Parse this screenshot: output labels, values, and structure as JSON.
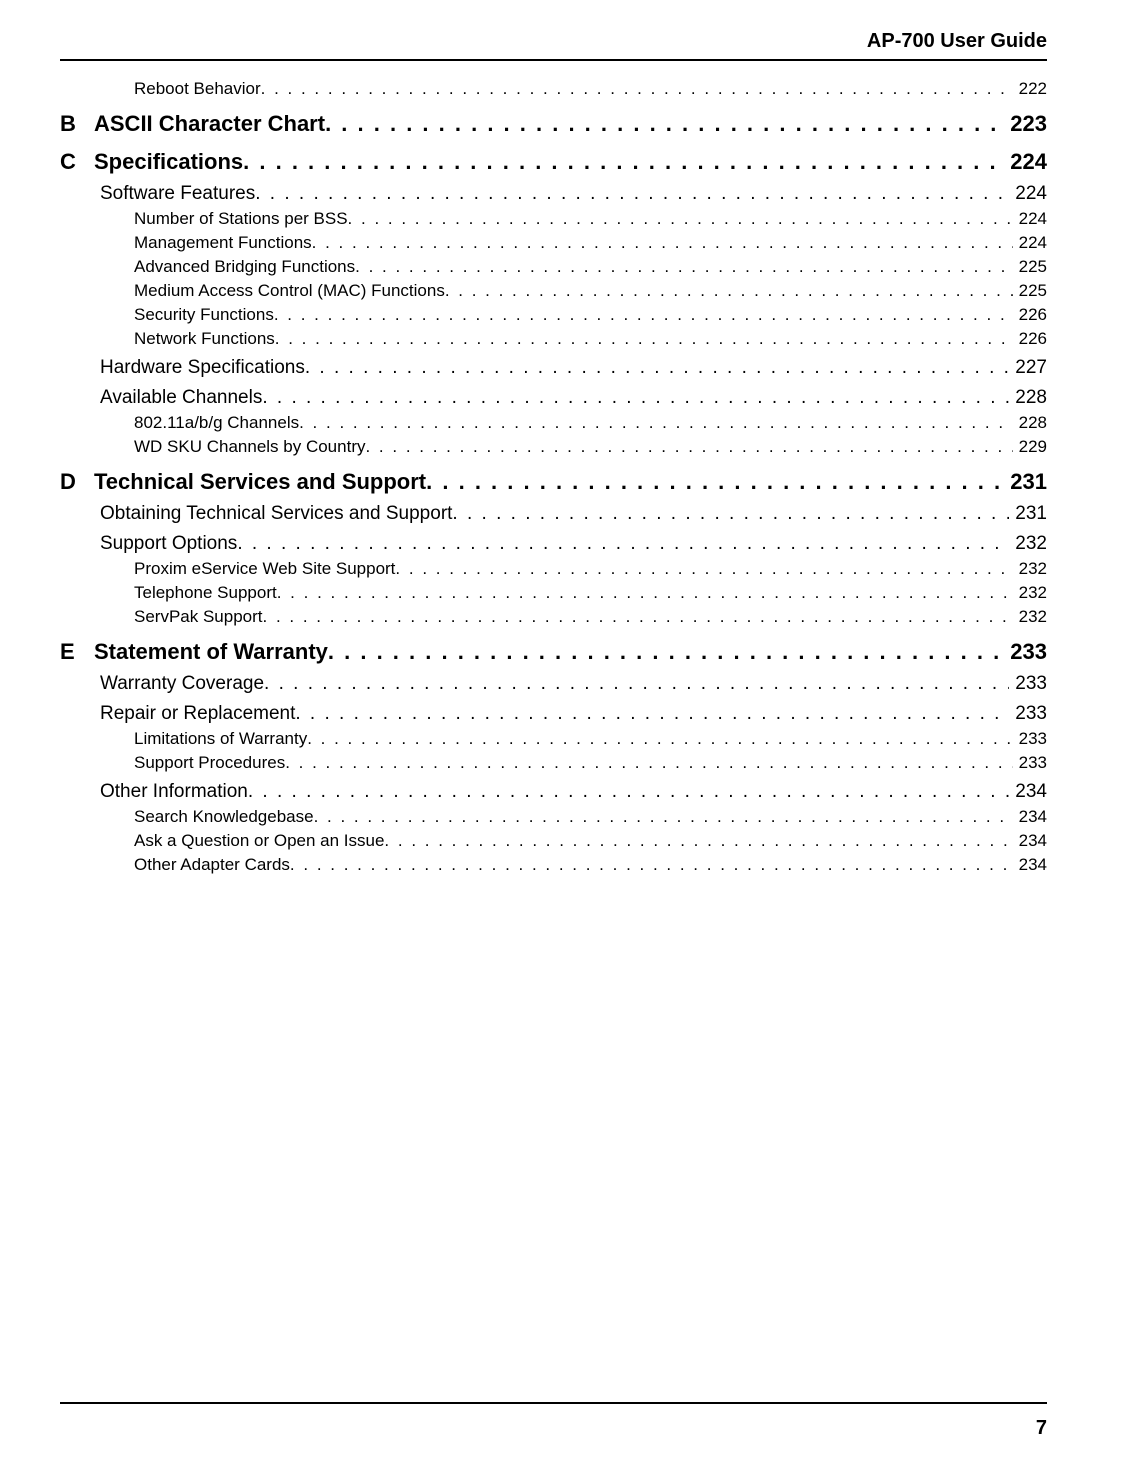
{
  "header": {
    "title": "AP-700 User Guide"
  },
  "footer": {
    "page_number": "7"
  },
  "toc": [
    {
      "level": 2,
      "label": "Reboot Behavior",
      "page": "222"
    },
    {
      "level": 0,
      "letter": "B",
      "label": "ASCII Character Chart",
      "page": "223"
    },
    {
      "level": 0,
      "letter": "C",
      "label": "Specifications",
      "page": "224"
    },
    {
      "level": 1,
      "label": "Software Features",
      "page": "224"
    },
    {
      "level": 2,
      "label": "Number of Stations per BSS",
      "page": "224"
    },
    {
      "level": 2,
      "label": "Management Functions",
      "page": "224"
    },
    {
      "level": 2,
      "label": "Advanced Bridging Functions",
      "page": "225"
    },
    {
      "level": 2,
      "label": "Medium Access Control (MAC) Functions",
      "page": "225"
    },
    {
      "level": 2,
      "label": "Security Functions",
      "page": "226"
    },
    {
      "level": 2,
      "label": "Network Functions",
      "page": "226"
    },
    {
      "level": 1,
      "label": "Hardware Specifications",
      "page": "227"
    },
    {
      "level": 1,
      "label": "Available Channels",
      "page": "228"
    },
    {
      "level": 2,
      "label": "802.11a/b/g Channels",
      "page": "228"
    },
    {
      "level": 2,
      "label": "WD SKU Channels by Country",
      "page": "229"
    },
    {
      "level": 0,
      "letter": "D",
      "label": "Technical Services and Support",
      "page": "231"
    },
    {
      "level": 1,
      "label": "Obtaining Technical Services and Support",
      "page": "231"
    },
    {
      "level": 1,
      "label": "Support Options",
      "page": "232"
    },
    {
      "level": 2,
      "label": "Proxim eService Web Site Support",
      "page": "232"
    },
    {
      "level": 2,
      "label": "Telephone Support",
      "page": "232"
    },
    {
      "level": 2,
      "label": "ServPak Support",
      "page": "232"
    },
    {
      "level": 0,
      "letter": "E",
      "label": "Statement of Warranty",
      "page": "233"
    },
    {
      "level": 1,
      "label": "Warranty Coverage",
      "page": "233"
    },
    {
      "level": 1,
      "label": "Repair or Replacement",
      "page": "233"
    },
    {
      "level": 2,
      "label": "Limitations of Warranty",
      "page": "233"
    },
    {
      "level": 2,
      "label": "Support Procedures",
      "page": "233"
    },
    {
      "level": 1,
      "label": "Other Information",
      "page": "234"
    },
    {
      "level": 2,
      "label": "Search Knowledgebase",
      "page": "234"
    },
    {
      "level": 2,
      "label": "Ask a Question or Open an Issue",
      "page": "234"
    },
    {
      "level": 2,
      "label": "Other Adapter Cards",
      "page": "234"
    }
  ]
}
